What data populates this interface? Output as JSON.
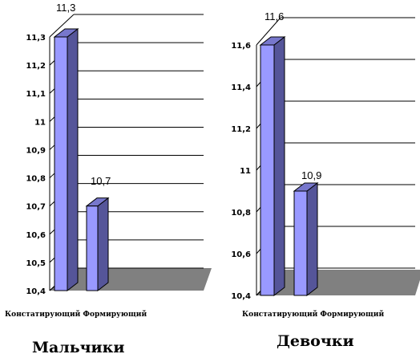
{
  "chart_data": [
    {
      "type": "bar",
      "title": "Мальчики",
      "categories": [
        "Констатирующий",
        "Формирующий"
      ],
      "values": [
        11.3,
        10.7
      ],
      "data_labels": [
        "11,3",
        "10,7"
      ],
      "ylim": [
        10.4,
        11.3
      ],
      "yticks": [
        10.4,
        10.5,
        10.6,
        10.7,
        10.8,
        10.9,
        11,
        11.1,
        11.2,
        11.3
      ],
      "ytick_labels": [
        "10,4",
        "10,5",
        "10,6",
        "10,7",
        "10,8",
        "10,9",
        "11",
        "11,1",
        "11,2",
        "11,3"
      ],
      "grid": true,
      "style": "3d-bar",
      "colors": {
        "bar_front": "#9999ff",
        "bar_side": "#555599",
        "bar_top": "#7777cc",
        "floor": "#808080"
      }
    },
    {
      "type": "bar",
      "title": "Девочки",
      "categories": [
        "Констатирующий",
        "Формирующий"
      ],
      "values": [
        11.6,
        10.9
      ],
      "data_labels": [
        "11,6",
        "10,9"
      ],
      "ylim": [
        10.4,
        11.6
      ],
      "yticks": [
        10.4,
        10.6,
        10.8,
        11,
        11.2,
        11.4,
        11.6
      ],
      "ytick_labels": [
        "10,4",
        "10,6",
        "10,8",
        "11",
        "11,2",
        "11,4",
        "11,6"
      ],
      "grid": true,
      "style": "3d-bar",
      "colors": {
        "bar_front": "#9999ff",
        "bar_side": "#555599",
        "bar_top": "#7777cc",
        "floor": "#808080"
      }
    }
  ]
}
